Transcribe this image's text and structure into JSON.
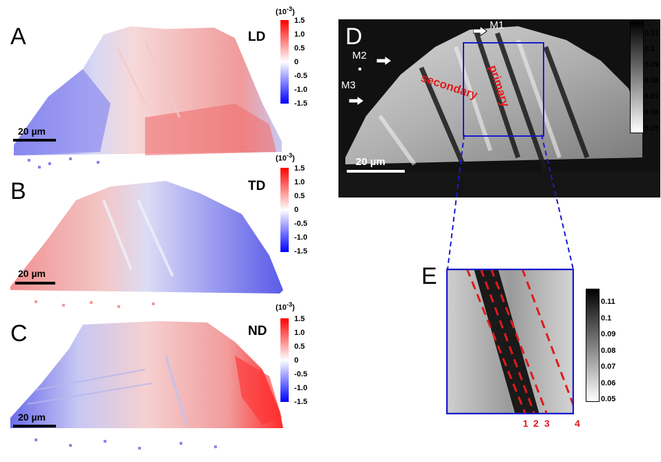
{
  "panels": {
    "A": {
      "letter": "A",
      "direction": "LD",
      "scale": "20 µm"
    },
    "B": {
      "letter": "B",
      "direction": "TD",
      "scale": "20 µm"
    },
    "C": {
      "letter": "C",
      "direction": "ND",
      "scale": "20 µm"
    },
    "D": {
      "letter": "D",
      "scale": "20 µm",
      "markers": [
        "M1",
        "M2",
        "M3"
      ],
      "labels": {
        "secondary": "secondary",
        "primary": "primary"
      }
    },
    "E": {
      "letter": "E",
      "line_numbers": [
        "1",
        "2",
        "3",
        "4"
      ]
    }
  },
  "strain_colorbar": {
    "unit": "(10-3)",
    "unit_base": "(10",
    "unit_exp": "-3",
    "unit_close": ")",
    "ticks": [
      "1.5",
      "1.0",
      "0.5",
      "0",
      "-0.5",
      "-1.0",
      "-1.5"
    ],
    "colors": {
      "max": "#ff0000",
      "mid": "#ffffff",
      "min": "#0000ff"
    }
  },
  "gray_colorbar": {
    "ticks": [
      "0.11",
      "0.1",
      "0.09",
      "0.08",
      "0.07",
      "0.06",
      "0.05"
    ],
    "colors": {
      "max": "#000000",
      "min": "#ffffff"
    }
  },
  "accent_colors": {
    "box": "#1a1acc",
    "dashed": "#e01a1a"
  }
}
